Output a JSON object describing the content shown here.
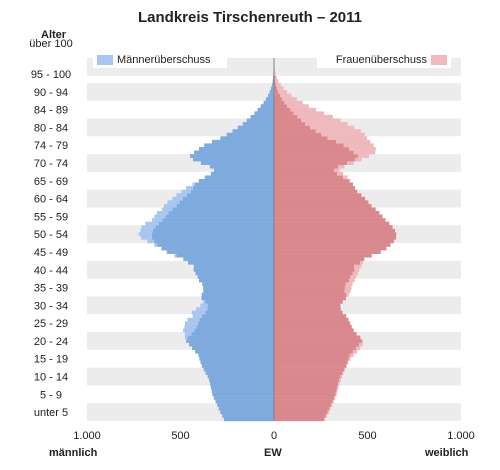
{
  "title": "Landkreis Tirschenreuth – 2011",
  "axis": {
    "age_title": "Alter",
    "left_label": "männlich",
    "center_label": "EW",
    "right_label": "weiblich"
  },
  "legend": {
    "male_surplus": "Männerüberschuss",
    "female_surplus": "Frauenüberschuss"
  },
  "colors": {
    "male": "#7faade",
    "female": "#d9898d",
    "male_surplus": "#a9c6ef",
    "female_surplus": "#efb9bd",
    "band": "#ececec",
    "center_line": "#808080"
  },
  "chart_data": {
    "type": "bar",
    "orientation": "horizontal-population-pyramid",
    "title": "Landkreis Tirschenreuth – 2011",
    "y_tick_labels": [
      "unter 5",
      "5 - 9",
      "10 - 14",
      "15 - 19",
      "20 - 24",
      "25 - 29",
      "30 - 34",
      "35 - 39",
      "40 - 44",
      "45 - 49",
      "50 - 54",
      "55 - 59",
      "60 - 64",
      "65 - 69",
      "70 - 74",
      "74 - 79",
      "80 - 84",
      "84 - 89",
      "90 - 94",
      "95 - 100",
      "über 100"
    ],
    "x_ticks": [
      -1000,
      -500,
      0,
      500,
      1000
    ],
    "x_tick_labels": [
      "1.000",
      "500",
      "0",
      "500",
      "1.000"
    ],
    "xlim": [
      -1000,
      1000
    ],
    "age_range": [
      0,
      102
    ],
    "series": [
      {
        "name": "männlich",
        "values": [
          268,
          277,
          287,
          296,
          304,
          313,
          322,
          330,
          334,
          338,
          342,
          347,
          355,
          366,
          376,
          386,
          393,
          399,
          404,
          422,
          438,
          454,
          470,
          477,
          477,
          486,
          479,
          476,
          463,
          435,
          440,
          417,
          394,
          380,
          390,
          387,
          378,
          379,
          384,
          401,
          408,
          420,
          430,
          429,
          460,
          487,
          532,
          576,
          603,
          640,
          677,
          711,
          724,
          714,
          708,
          688,
          652,
          640,
          626,
          599,
          588,
          570,
          544,
          522,
          495,
          470,
          436,
          402,
          370,
          338,
          321,
          343,
          391,
          433,
          449,
          427,
          402,
          373,
          332,
          287,
          253,
          222,
          194,
          167,
          146,
          125,
          105,
          88,
          71,
          56,
          43,
          32,
          23,
          16,
          10,
          7,
          5,
          3,
          2,
          1,
          1,
          1
        ]
      },
      {
        "name": "weiblich",
        "values": [
          274,
          284,
          294,
          303,
          312,
          320,
          328,
          335,
          339,
          345,
          351,
          357,
          364,
          372,
          381,
          390,
          397,
          409,
          425,
          445,
          461,
          475,
          476,
          462,
          441,
          426,
          416,
          407,
          398,
          386,
          367,
          357,
          355,
          368,
          385,
          400,
          410,
          415,
          420,
          431,
          439,
          448,
          457,
          467,
          476,
          483,
          523,
          571,
          601,
          623,
          641,
          653,
          654,
          647,
          634,
          617,
          596,
          580,
          564,
          544,
          521,
          505,
          487,
          467,
          445,
          434,
          423,
          409,
          393,
          370,
          351,
          376,
          425,
          469,
          508,
          541,
          544,
          533,
          515,
          498,
          485,
          464,
          429,
          393,
          356,
          315,
          268,
          224,
          186,
          153,
          122,
          93,
          70,
          51,
          36,
          24,
          15,
          9,
          5,
          3,
          1,
          1
        ]
      }
    ],
    "legend": [
      "Männerüberschuss",
      "Frauenüberschuss"
    ]
  }
}
